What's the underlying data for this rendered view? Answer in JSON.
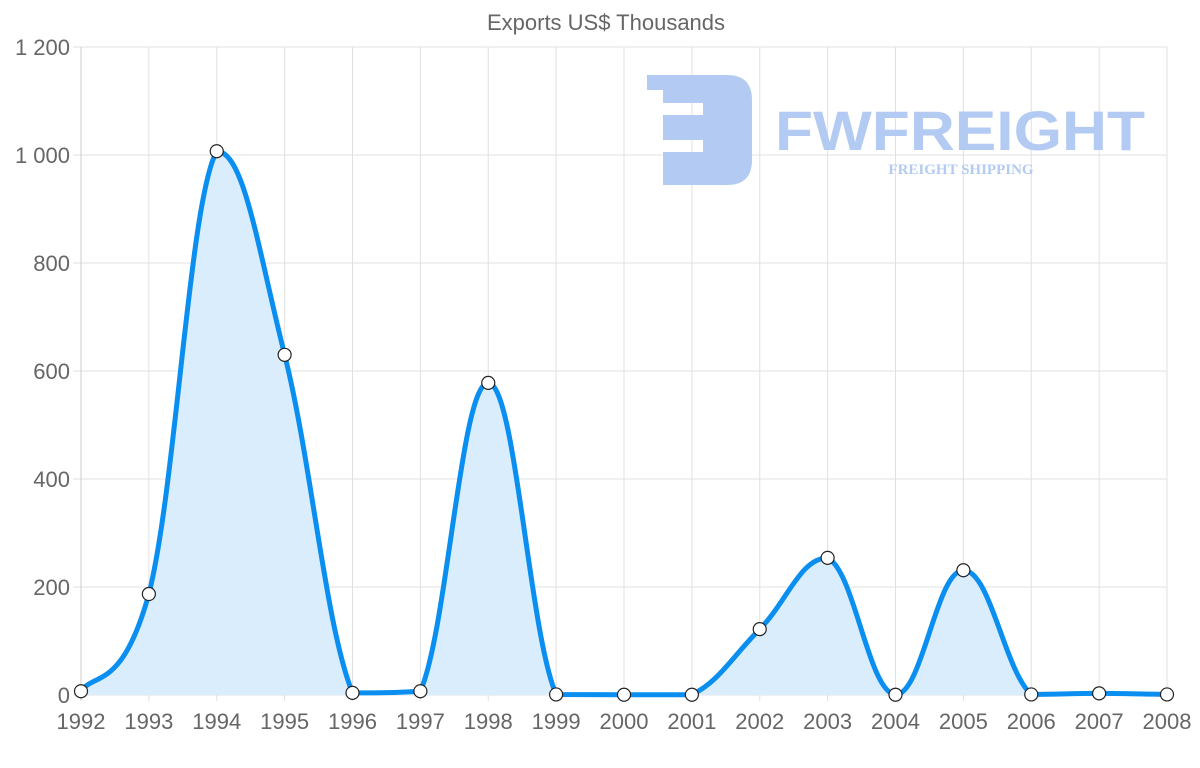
{
  "chart_data": {
    "type": "area",
    "title": "Exports US$ Thousands",
    "xlabel": "",
    "ylabel": "",
    "categories": [
      "1992",
      "1993",
      "1994",
      "1995",
      "1996",
      "1997",
      "1998",
      "1999",
      "2000",
      "2001",
      "2002",
      "2003",
      "2004",
      "2005",
      "2006",
      "2007",
      "2008"
    ],
    "series": [
      {
        "name": "Exports US$ Thousands",
        "values": [
          7,
          187,
          1007,
          630,
          4,
          7,
          578,
          1,
          0.5,
          0.5,
          122,
          254,
          0.5,
          231,
          1,
          3,
          1
        ],
        "color": "#0a8ff0",
        "fill": "#d9edfc"
      }
    ],
    "ylim": [
      0,
      1200
    ],
    "yticks": [
      0,
      200,
      400,
      600,
      800,
      1000,
      1200
    ],
    "ytick_labels": [
      "0",
      "200",
      "400",
      "600",
      "800",
      "1 000",
      "1 200"
    ],
    "grid": true,
    "legend": "none"
  },
  "watermark": {
    "brand": "FWFREIGHT",
    "tagline": "FREIGHT SHIPPING",
    "color": "#b3cbf2"
  }
}
